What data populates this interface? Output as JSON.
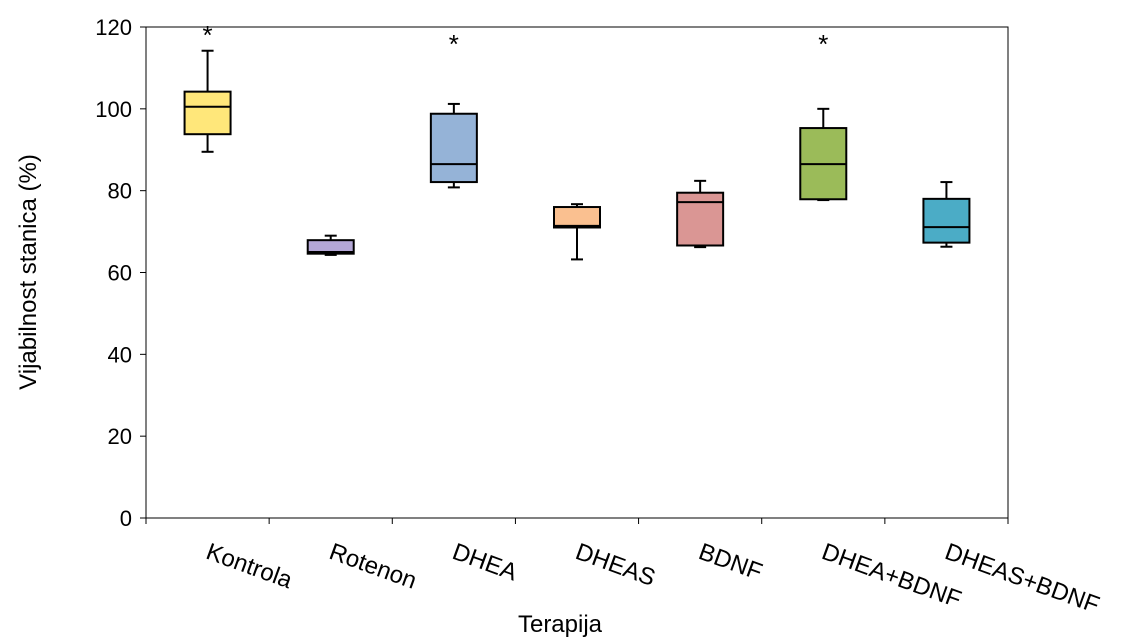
{
  "chart_data": {
    "type": "boxplot",
    "title": "",
    "xlabel": "Terapija",
    "ylabel": "Vijabilnost stanica  (%)",
    "ylim": [
      0,
      120
    ],
    "yticks": [
      0,
      20,
      40,
      60,
      80,
      100,
      120
    ],
    "grid": false,
    "legend": "none",
    "categories": [
      "Kontrola",
      "Rotenon",
      "DHEA",
      "DHEAS",
      "BDNF",
      "DHEA+BDNF",
      "DHEAS+BDNF"
    ],
    "boxes": [
      {
        "min": 89.5,
        "q1": 93.8,
        "median": 100.5,
        "q3": 104.2,
        "max": 114.2,
        "color": "#ffe77a",
        "significance": "*"
      },
      {
        "min": 64.3,
        "q1": 64.6,
        "median": 65.0,
        "q3": 67.9,
        "max": 69.0,
        "color": "#b4a7d6",
        "significance": ""
      },
      {
        "min": 80.8,
        "q1": 82.1,
        "median": 86.5,
        "q3": 98.8,
        "max": 101.2,
        "color": "#95b3d7",
        "significance": "*"
      },
      {
        "min": 63.2,
        "q1": 71.0,
        "median": 71.4,
        "q3": 76.0,
        "max": 76.7,
        "color": "#fac090",
        "significance": ""
      },
      {
        "min": 66.2,
        "q1": 66.6,
        "median": 77.2,
        "q3": 79.5,
        "max": 82.4,
        "color": "#da9694",
        "significance": ""
      },
      {
        "min": 77.7,
        "q1": 77.9,
        "median": 86.5,
        "q3": 95.3,
        "max": 100.0,
        "color": "#9bbb59",
        "significance": "*"
      },
      {
        "min": 66.3,
        "q1": 67.3,
        "median": 71.1,
        "q3": 78.0,
        "max": 82.1,
        "color": "#4bacc6",
        "significance": ""
      }
    ]
  }
}
